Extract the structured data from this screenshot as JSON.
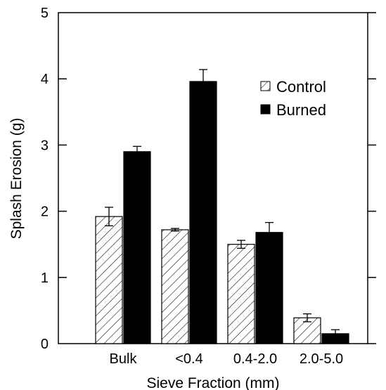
{
  "chart_data": {
    "type": "bar",
    "title": "",
    "xlabel": "Sieve Fraction (mm)",
    "ylabel": "Splash Erosion (g)",
    "categories": [
      "Bulk",
      "<0.4",
      "0.4-2.0",
      "2.0-5.0"
    ],
    "ylim": [
      0,
      5
    ],
    "yticks": [
      "0",
      "1",
      "2",
      "3",
      "4",
      "5"
    ],
    "grid": false,
    "legend_position": "top-right",
    "series": [
      {
        "name": "Control",
        "fill": "hatched",
        "color": "#000000",
        "values": [
          1.92,
          1.72,
          1.5,
          0.39
        ],
        "errors": [
          0.14,
          0.02,
          0.06,
          0.06
        ]
      },
      {
        "name": "Burned",
        "fill": "solid",
        "color": "#000000",
        "values": [
          2.9,
          3.96,
          1.68,
          0.15
        ],
        "errors": [
          0.08,
          0.18,
          0.15,
          0.06
        ]
      }
    ]
  }
}
